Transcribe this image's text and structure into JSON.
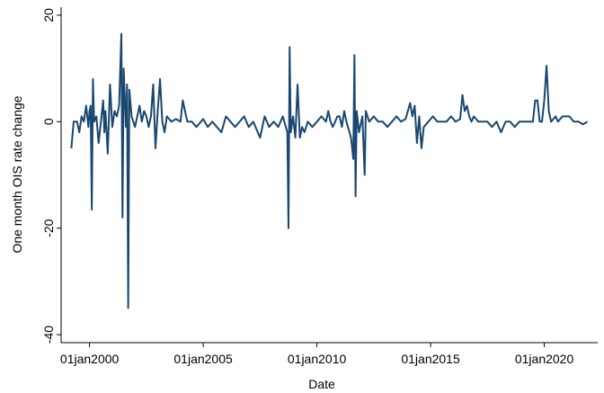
{
  "chart_data": {
    "type": "line",
    "xlabel": "Date",
    "ylabel": "One month OIS rate change",
    "color": "#1a476f",
    "grid": false,
    "xlim": [
      1998.75,
      2022.35
    ],
    "ylim": [
      -41.5,
      21.5
    ],
    "xticks": [
      {
        "value": 2000,
        "label": "01jan2000"
      },
      {
        "value": 2005,
        "label": "01jan2005"
      },
      {
        "value": 2010,
        "label": "01jan2010"
      },
      {
        "value": 2015,
        "label": "01jan2015"
      },
      {
        "value": 2020,
        "label": "01jan2020"
      }
    ],
    "yticks": [
      -40,
      -20,
      0,
      20
    ],
    "x": [
      1999.2,
      1999.3,
      1999.45,
      1999.55,
      1999.65,
      1999.75,
      1999.85,
      1999.95,
      2000.0,
      2000.05,
      2000.1,
      2000.15,
      2000.2,
      2000.3,
      2000.4,
      2000.5,
      2000.6,
      2000.65,
      2000.7,
      2000.8,
      2000.9,
      2001.0,
      2001.1,
      2001.2,
      2001.3,
      2001.4,
      2001.45,
      2001.5,
      2001.6,
      2001.65,
      2001.7,
      2001.75,
      2001.85,
      2002.0,
      2002.1,
      2002.2,
      2002.3,
      2002.4,
      2002.5,
      2002.6,
      2002.7,
      2002.8,
      2002.9,
      2003.0,
      2003.1,
      2003.2,
      2003.3,
      2003.4,
      2003.6,
      2003.8,
      2004.0,
      2004.1,
      2004.3,
      2004.5,
      2004.7,
      2004.9,
      2005.0,
      2005.2,
      2005.4,
      2005.6,
      2005.8,
      2006.0,
      2006.2,
      2006.4,
      2006.6,
      2006.8,
      2007.0,
      2007.2,
      2007.5,
      2007.7,
      2007.9,
      2008.1,
      2008.3,
      2008.5,
      2008.7,
      2008.75,
      2008.8,
      2008.85,
      2008.95,
      2009.05,
      2009.15,
      2009.25,
      2009.35,
      2009.45,
      2009.6,
      2009.8,
      2010.0,
      2010.2,
      2010.4,
      2010.5,
      2010.6,
      2010.7,
      2010.9,
      2011.0,
      2011.1,
      2011.2,
      2011.3,
      2011.5,
      2011.6,
      2011.65,
      2011.7,
      2011.75,
      2011.85,
      2012.0,
      2012.1,
      2012.15,
      2012.3,
      2012.5,
      2012.7,
      2012.9,
      2013.1,
      2013.3,
      2013.5,
      2013.7,
      2013.9,
      2014.1,
      2014.2,
      2014.3,
      2014.4,
      2014.5,
      2014.6,
      2014.7,
      2014.9,
      2015.1,
      2015.3,
      2015.5,
      2015.7,
      2015.9,
      2016.1,
      2016.3,
      2016.4,
      2016.5,
      2016.6,
      2016.7,
      2016.8,
      2016.9,
      2017.1,
      2017.3,
      2017.5,
      2017.7,
      2017.9,
      2018.1,
      2018.3,
      2018.5,
      2018.7,
      2018.9,
      2019.1,
      2019.3,
      2019.5,
      2019.6,
      2019.7,
      2019.8,
      2019.9,
      2020.0,
      2020.1,
      2020.2,
      2020.3,
      2020.5,
      2020.6,
      2020.8,
      2020.9,
      2021.1,
      2021.3,
      2021.5,
      2021.7,
      2021.9
    ],
    "values": [
      -5,
      0,
      0,
      -2,
      1,
      0,
      3,
      -1,
      2,
      3,
      -16.5,
      8,
      0,
      1,
      -4,
      0,
      4,
      -2,
      2,
      -6,
      7,
      -1,
      2,
      1,
      3,
      16.5,
      -18,
      10,
      -1,
      7,
      -35,
      6,
      1,
      -1,
      1,
      3,
      0,
      2,
      1,
      -1,
      1,
      7,
      -5,
      2,
      8,
      0,
      -2,
      1,
      0,
      0.5,
      0,
      4,
      0,
      0,
      -1,
      0,
      0.5,
      -1,
      0,
      -1,
      -2,
      1,
      0,
      -1,
      0,
      1,
      -1,
      0,
      -3,
      1,
      -1,
      0,
      -1,
      1,
      -2,
      -20,
      14,
      -2,
      1,
      -3,
      7,
      -3,
      -1,
      -2,
      0,
      -1,
      0,
      1,
      0,
      2,
      0,
      -1,
      1,
      1,
      -1,
      2,
      0,
      -3,
      -7,
      12.5,
      -14,
      2,
      -2,
      1,
      -10,
      2,
      0,
      1,
      0,
      0,
      -1,
      0,
      1,
      0,
      0.5,
      3.5,
      1,
      3,
      -4,
      1,
      -5,
      -1,
      0,
      1,
      0,
      0,
      0,
      1,
      0,
      0.5,
      5,
      2,
      3,
      1,
      0,
      1,
      0,
      0,
      0,
      -1,
      0,
      -2,
      0,
      0,
      -1,
      0,
      0,
      0,
      0,
      4,
      4,
      0,
      0,
      4,
      10.5,
      2,
      0,
      1,
      0,
      1,
      1,
      1,
      0,
      0,
      -0.5,
      0
    ]
  }
}
